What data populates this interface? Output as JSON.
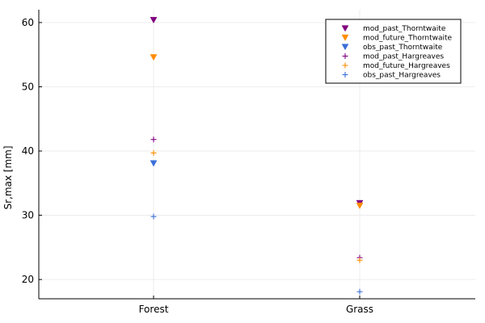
{
  "chart_data": {
    "type": "scatter",
    "title": "",
    "xlabel": "",
    "ylabel": "Sr,max [mm]",
    "categories": [
      "Forest",
      "Grass"
    ],
    "ylim": [
      17,
      62
    ],
    "yticks": [
      20,
      30,
      40,
      50,
      60
    ],
    "grid": true,
    "legend_position": "top-right",
    "series": [
      {
        "name": "mod_past_Thorntwaite",
        "marker": "triangle-down",
        "color": "#800080",
        "values": [
          60.4,
          31.9
        ]
      },
      {
        "name": "mod_future_Thorntwaite",
        "marker": "triangle-down",
        "color": "#ff8c00",
        "values": [
          54.6,
          31.5
        ]
      },
      {
        "name": "obs_past_Thorntwaite",
        "marker": "triangle-down",
        "color": "#3a6fd8",
        "values": [
          38.1,
          null
        ]
      },
      {
        "name": "mod_past_Hargreaves",
        "marker": "cross",
        "color": "#800080",
        "values": [
          41.8,
          23.4
        ]
      },
      {
        "name": "mod_future_Hargreaves",
        "marker": "cross",
        "color": "#ff8c00",
        "values": [
          39.7,
          23.0
        ]
      },
      {
        "name": "obs_past_Hargreaves",
        "marker": "cross",
        "color": "#3a6fd8",
        "values": [
          29.8,
          18.1
        ]
      }
    ]
  }
}
